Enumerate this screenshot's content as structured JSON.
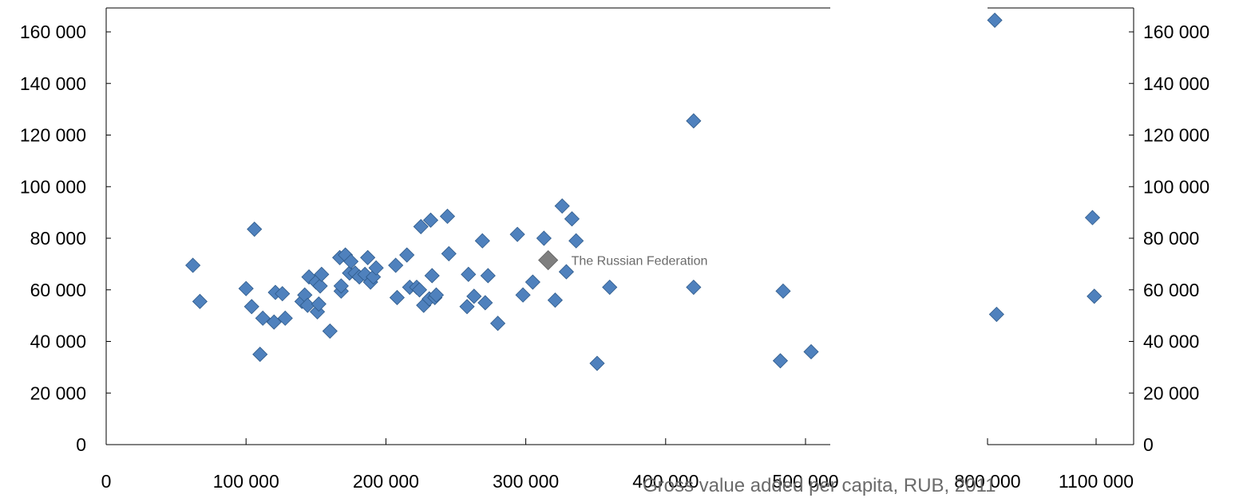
{
  "chart_data": {
    "type": "scatter",
    "xlabel": "Gross value added per capita, RUB, 2011",
    "ylabel": "",
    "title": "",
    "grid": false,
    "ylim": [
      0,
      170000
    ],
    "y_ticks": [
      0,
      20000,
      40000,
      60000,
      80000,
      100000,
      120000,
      140000,
      160000
    ],
    "y_tick_labels": [
      "0",
      "20 000",
      "40 000",
      "60 000",
      "80 000",
      "100 000",
      "120 000",
      "140 000",
      "160 000"
    ],
    "x_segments": [
      {
        "xlim": [
          0,
          535000
        ],
        "ticks": [
          0,
          100000,
          200000,
          300000,
          400000,
          500000
        ],
        "tick_labels": [
          "0",
          "100 000",
          "200 000",
          "300 000",
          "400 000",
          "500 000"
        ]
      },
      {
        "xlim": [
          800000,
          1100000
        ],
        "ticks": [
          800000,
          1100000
        ],
        "tick_labels": [
          "800 000",
          "1100 000"
        ]
      }
    ],
    "marker_color": "#4f81bd",
    "highlight_color": "#7f7f7f",
    "series": [
      {
        "values": [
          [
            62000,
            69500
          ],
          [
            67000,
            55500
          ],
          [
            100000,
            60500
          ],
          [
            104000,
            53500
          ],
          [
            106000,
            83500
          ],
          [
            110000,
            35000
          ],
          [
            112000,
            49000
          ],
          [
            120000,
            47500
          ],
          [
            121000,
            59000
          ],
          [
            126000,
            58500
          ],
          [
            128000,
            49000
          ],
          [
            140000,
            55500
          ],
          [
            142000,
            58000
          ],
          [
            144000,
            54000
          ],
          [
            145000,
            65000
          ],
          [
            150000,
            63000
          ],
          [
            151000,
            51500
          ],
          [
            152000,
            54500
          ],
          [
            153000,
            61500
          ],
          [
            154000,
            66000
          ],
          [
            160000,
            44000
          ],
          [
            167000,
            72500
          ],
          [
            168000,
            59500
          ],
          [
            168000,
            61500
          ],
          [
            171000,
            73500
          ],
          [
            174000,
            66500
          ],
          [
            175000,
            71000
          ],
          [
            178000,
            66500
          ],
          [
            181000,
            65000
          ],
          [
            185000,
            66000
          ],
          [
            187000,
            72500
          ],
          [
            189000,
            63000
          ],
          [
            191000,
            65000
          ],
          [
            193000,
            68500
          ],
          [
            207000,
            69500
          ],
          [
            208000,
            57000
          ],
          [
            215000,
            73500
          ],
          [
            217000,
            61000
          ],
          [
            222000,
            61000
          ],
          [
            224000,
            60000
          ],
          [
            225000,
            84500
          ],
          [
            227000,
            54000
          ],
          [
            231000,
            56500
          ],
          [
            232000,
            87000
          ],
          [
            233000,
            65500
          ],
          [
            235000,
            57000
          ],
          [
            236000,
            58000
          ],
          [
            244000,
            88500
          ],
          [
            245000,
            74000
          ],
          [
            258000,
            53500
          ],
          [
            259000,
            66000
          ],
          [
            263000,
            57500
          ],
          [
            269000,
            79000
          ],
          [
            271000,
            55000
          ],
          [
            273000,
            65500
          ],
          [
            280000,
            47000
          ],
          [
            294000,
            81500
          ],
          [
            298000,
            58000
          ],
          [
            305000,
            63000
          ],
          [
            313000,
            80000
          ],
          [
            321000,
            56000
          ],
          [
            326000,
            92500
          ],
          [
            329000,
            67000
          ],
          [
            333000,
            87500
          ],
          [
            336000,
            79000
          ],
          [
            351000,
            31500
          ],
          [
            360000,
            61000
          ],
          [
            420000,
            125500
          ],
          [
            420000,
            61000
          ],
          [
            482000,
            32500
          ],
          [
            484000,
            59500
          ],
          [
            504000,
            36000
          ],
          [
            820000,
            164500
          ],
          [
            825000,
            50500
          ],
          [
            1090000,
            88000
          ],
          [
            1095000,
            57500
          ]
        ]
      },
      {
        "name": "The Russian Federation",
        "values": [
          [
            316000,
            71500
          ]
        ]
      }
    ],
    "annotations": [
      {
        "text": "The Russian Federation"
      }
    ]
  }
}
